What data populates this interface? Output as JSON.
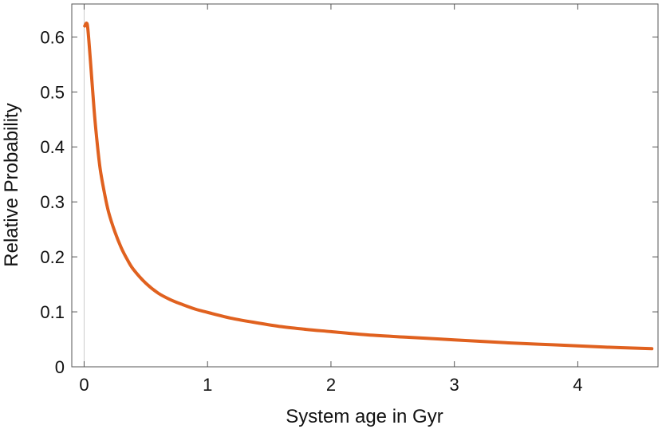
{
  "chart_data": {
    "type": "line",
    "title": "",
    "xlabel": "System age in Gyr",
    "ylabel": "Relative Probability",
    "xlim": [
      -0.1,
      4.65
    ],
    "ylim": [
      0,
      0.66
    ],
    "xticks": [
      {
        "value": 0,
        "label": "0"
      },
      {
        "value": 1,
        "label": "1"
      },
      {
        "value": 2,
        "label": "2"
      },
      {
        "value": 3,
        "label": "3"
      },
      {
        "value": 4,
        "label": "4"
      }
    ],
    "yticks": [
      {
        "value": 0,
        "label": "0"
      },
      {
        "value": 0.1,
        "label": "0.1"
      },
      {
        "value": 0.2,
        "label": "0.2"
      },
      {
        "value": 0.3,
        "label": "0.3"
      },
      {
        "value": 0.4,
        "label": "0.4"
      },
      {
        "value": 0.5,
        "label": "0.5"
      },
      {
        "value": 0.6,
        "label": "0.6"
      }
    ],
    "grid": false,
    "reference_line_x": 0,
    "series": [
      {
        "color": "#e0611f",
        "x": [
          0.005,
          0.02,
          0.03,
          0.05,
          0.08,
          0.1,
          0.13,
          0.17,
          0.2,
          0.25,
          0.3,
          0.35,
          0.4,
          0.5,
          0.6,
          0.7,
          0.8,
          0.9,
          1.0,
          1.2,
          1.4,
          1.6,
          1.8,
          2.0,
          2.3,
          2.6,
          3.0,
          3.4,
          3.8,
          4.2,
          4.6
        ],
        "y": [
          0.62,
          0.625,
          0.615,
          0.56,
          0.47,
          0.42,
          0.36,
          0.31,
          0.28,
          0.245,
          0.217,
          0.195,
          0.177,
          0.152,
          0.134,
          0.122,
          0.113,
          0.105,
          0.099,
          0.088,
          0.08,
          0.073,
          0.068,
          0.064,
          0.058,
          0.054,
          0.049,
          0.044,
          0.04,
          0.036,
          0.033
        ]
      }
    ]
  }
}
